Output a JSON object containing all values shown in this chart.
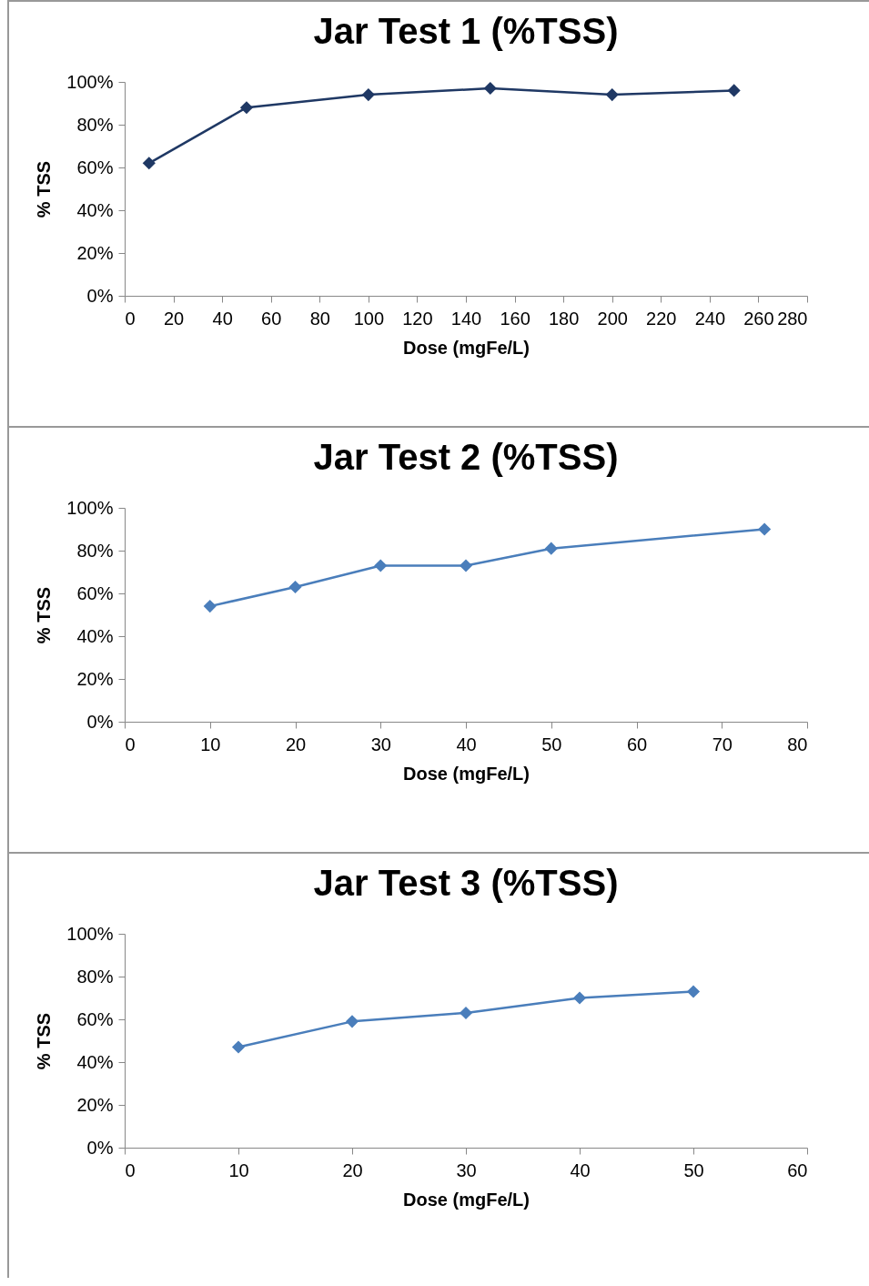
{
  "chart_data": [
    {
      "type": "line",
      "title": "Jar Test 1 (%TSS)",
      "xlabel": "Dose (mgFe/L)",
      "ylabel": "% TSS",
      "x": [
        10,
        50,
        100,
        150,
        200,
        250
      ],
      "series": [
        {
          "color": "#1f3864",
          "values": [
            62,
            88,
            94,
            97,
            94,
            96
          ]
        }
      ],
      "xlim": [
        0,
        280
      ],
      "xticks": [
        0,
        20,
        40,
        60,
        80,
        100,
        120,
        140,
        160,
        180,
        200,
        220,
        240,
        260,
        280
      ],
      "ylim": [
        0,
        100
      ],
      "yticks": [
        {
          "value": 0,
          "label": "0%"
        },
        {
          "value": 20,
          "label": "20%"
        },
        {
          "value": 40,
          "label": "40%"
        },
        {
          "value": 60,
          "label": "60%"
        },
        {
          "value": 80,
          "label": "80%"
        },
        {
          "value": 100,
          "label": "100%"
        }
      ],
      "marker": "diamond",
      "grid": false,
      "legend": false
    },
    {
      "type": "line",
      "title": "Jar Test 2 (%TSS)",
      "xlabel": "Dose (mgFe/L)",
      "ylabel": "% TSS",
      "x": [
        10,
        20,
        30,
        40,
        50,
        75
      ],
      "series": [
        {
          "color": "#4a7ebb",
          "values": [
            54,
            63,
            73,
            73,
            81,
            90
          ]
        }
      ],
      "xlim": [
        0,
        80
      ],
      "xticks": [
        0,
        10,
        20,
        30,
        40,
        50,
        60,
        70,
        80
      ],
      "ylim": [
        0,
        100
      ],
      "yticks": [
        {
          "value": 0,
          "label": "0%"
        },
        {
          "value": 20,
          "label": "20%"
        },
        {
          "value": 40,
          "label": "40%"
        },
        {
          "value": 60,
          "label": "60%"
        },
        {
          "value": 80,
          "label": "80%"
        },
        {
          "value": 100,
          "label": "100%"
        }
      ],
      "marker": "diamond",
      "grid": false,
      "legend": false
    },
    {
      "type": "line",
      "title": "Jar Test 3 (%TSS)",
      "xlabel": "Dose (mgFe/L)",
      "ylabel": "% TSS",
      "x": [
        10,
        20,
        30,
        40,
        50
      ],
      "series": [
        {
          "color": "#4a7ebb",
          "values": [
            47,
            59,
            63,
            70,
            73
          ]
        }
      ],
      "xlim": [
        0,
        60
      ],
      "xticks": [
        0,
        10,
        20,
        30,
        40,
        50,
        60
      ],
      "ylim": [
        0,
        100
      ],
      "yticks": [
        {
          "value": 0,
          "label": "0%"
        },
        {
          "value": 20,
          "label": "20%"
        },
        {
          "value": 40,
          "label": "40%"
        },
        {
          "value": 60,
          "label": "60%"
        },
        {
          "value": 80,
          "label": "80%"
        },
        {
          "value": 100,
          "label": "100%"
        }
      ],
      "marker": "diamond",
      "grid": false,
      "legend": false
    }
  ]
}
